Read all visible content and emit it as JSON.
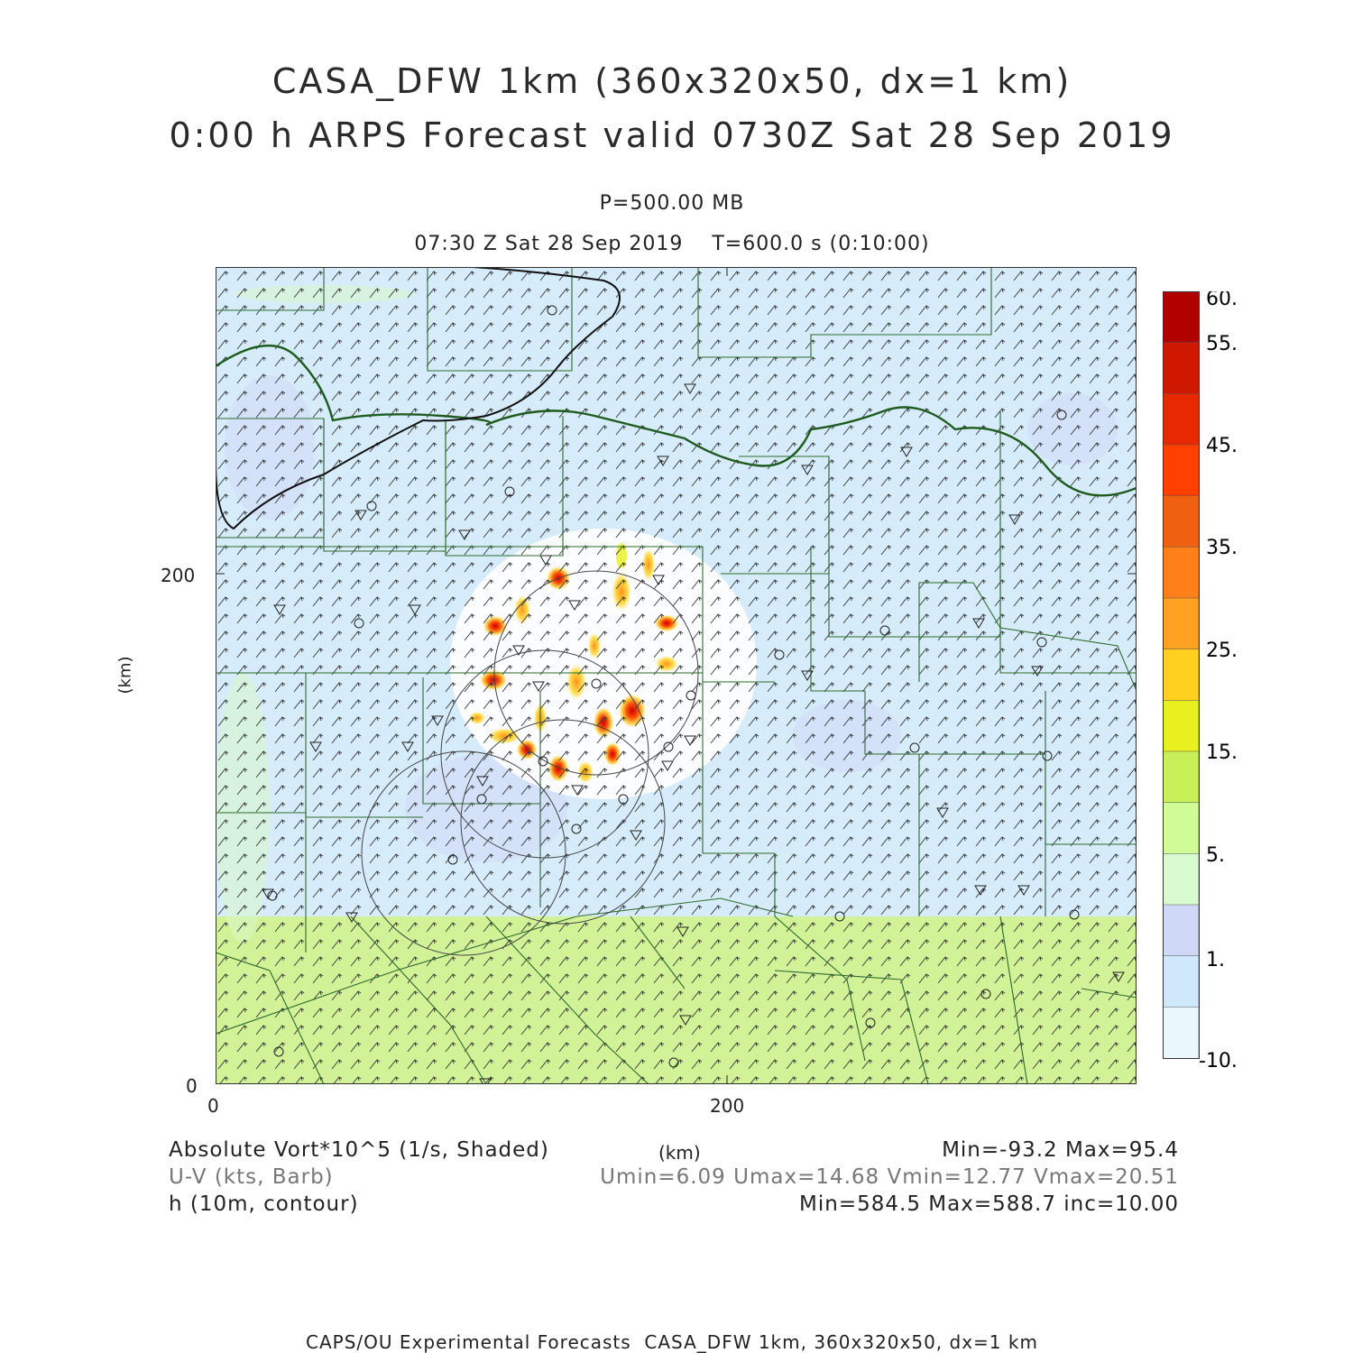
{
  "header": {
    "title_line1": "CASA_DFW 1km (360x320x50, dx=1 km)",
    "title_line2": "0:00 h ARPS Forecast valid 0730Z Sat 28 Sep 2019",
    "level": "P=500.00 MB",
    "valid_line": "07:30 Z Sat 28 Sep 2019    T=600.0 s (0:10:00)"
  },
  "axes": {
    "y_label": "(km)",
    "x_label": "(km)",
    "x_ticks": [
      "0",
      "200"
    ],
    "y_ticks": [
      "0",
      "200"
    ],
    "x_range_km": [
      0,
      360
    ],
    "y_range_km": [
      0,
      320
    ]
  },
  "colorbar": {
    "labels": [
      "60.",
      "55.",
      "45.",
      "35.",
      "25.",
      "15.",
      "5.",
      "1.",
      "-10."
    ],
    "colors": [
      "#b00000",
      "#d01800",
      "#e82800",
      "#ff4000",
      "#f06010",
      "#ff8018",
      "#ffa020",
      "#ffd020",
      "#e8f020",
      "#c8f058",
      "#d0fc98",
      "#d8fcd0",
      "#d0d8f8",
      "#d0e8fc",
      "#e8f8fc"
    ]
  },
  "legend": {
    "field1": "Absolute Vort*10^5 (1/s, Shaded)",
    "field1_stats": "Min=-93.2 Max=95.4",
    "field2": "U-V (kts, Barb)",
    "field2_stats": "Umin=6.09 Umax=14.68 Vmin=12.77 Vmax=20.51",
    "field3": "h (10m, contour)",
    "field3_stats": "Min=584.5 Max=588.7 inc=10.00"
  },
  "footer": "CAPS/OU Experimental Forecasts  CASA_DFW 1km, 360x320x50, dx=1 km"
}
